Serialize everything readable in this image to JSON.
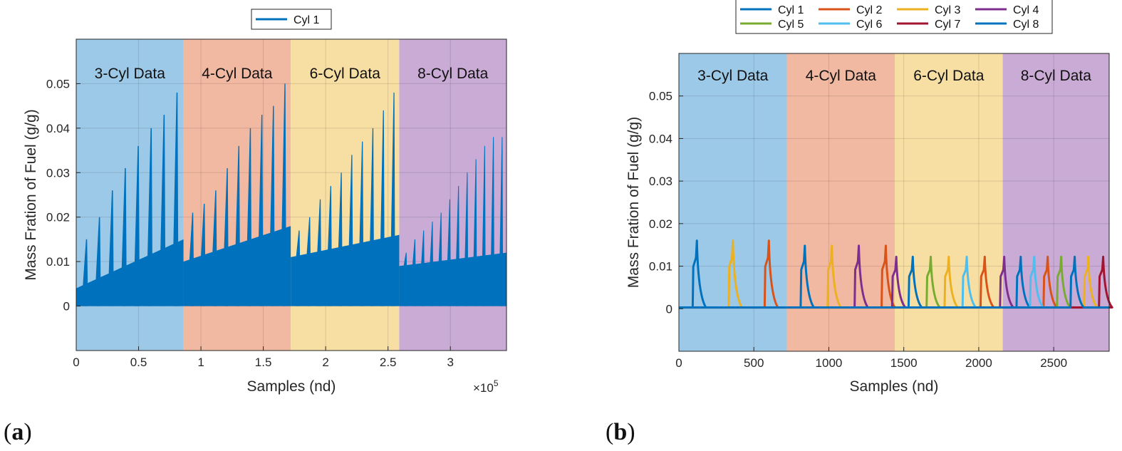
{
  "chart_data": [
    {
      "type": "line",
      "panel_label": "(a)",
      "panel_letter": "a",
      "xlabel": "Samples (nd)",
      "ylabel": "Mass Fration of Fuel (g/g)",
      "x_exponent_label": "×10",
      "x_exponent_power": "5",
      "xlim": [
        0,
        3.45
      ],
      "ylim": [
        -0.01,
        0.06
      ],
      "xticks": [
        0,
        0.5,
        1,
        1.5,
        2,
        2.5,
        3
      ],
      "xtick_labels": [
        "0",
        "0.5",
        "1",
        "1.5",
        "2",
        "2.5",
        "3"
      ],
      "yticks": [
        0,
        0.01,
        0.02,
        0.03,
        0.04,
        0.05
      ],
      "ytick_labels": [
        "0",
        "0.01",
        "0.02",
        "0.03",
        "0.04",
        "0.05"
      ],
      "grid": true,
      "legend_position": "top-center",
      "regions": [
        {
          "label": "3-Cyl Data",
          "x_start": 0,
          "x_end": 0.86,
          "color": "#9dc9e8"
        },
        {
          "label": "4-Cyl Data",
          "x_start": 0.86,
          "x_end": 1.72,
          "color": "#f1b9a2"
        },
        {
          "label": "6-Cyl Data",
          "x_start": 1.72,
          "x_end": 2.59,
          "color": "#f7dfa4"
        },
        {
          "label": "8-Cyl Data",
          "x_start": 2.59,
          "x_end": 3.45,
          "color": "#c9abd5"
        }
      ],
      "series": [
        {
          "name": "Cyl 1",
          "color": "#0072BD",
          "segments": [
            {
              "x_start": 0,
              "x_end": 0.86,
              "base_start": 0.004,
              "base_end": 0.015,
              "spikes": [
                0.015,
                0.02,
                0.026,
                0.031,
                0.036,
                0.04,
                0.043,
                0.048
              ]
            },
            {
              "x_start": 0.86,
              "x_end": 1.72,
              "base_start": 0.01,
              "base_end": 0.018,
              "spikes": [
                0.021,
                0.023,
                0.026,
                0.031,
                0.036,
                0.04,
                0.043,
                0.045,
                0.05
              ]
            },
            {
              "x_start": 1.72,
              "x_end": 2.59,
              "base_start": 0.011,
              "base_end": 0.016,
              "spikes": [
                0.017,
                0.02,
                0.024,
                0.027,
                0.03,
                0.034,
                0.037,
                0.04,
                0.044,
                0.048
              ]
            },
            {
              "x_start": 2.59,
              "x_end": 3.45,
              "base_start": 0.009,
              "base_end": 0.012,
              "spikes": [
                0.012,
                0.015,
                0.017,
                0.019,
                0.021,
                0.024,
                0.027,
                0.03,
                0.033,
                0.036,
                0.038,
                0.038
              ]
            }
          ]
        }
      ]
    },
    {
      "type": "line",
      "panel_label": "(b)",
      "panel_letter": "b",
      "xlabel": "Samples (nd)",
      "ylabel": "Mass Fration of Fuel (g/g)",
      "xlim": [
        0,
        2870
      ],
      "ylim": [
        -0.01,
        0.06
      ],
      "xticks": [
        0,
        500,
        1000,
        1500,
        2000,
        2500
      ],
      "xtick_labels": [
        "0",
        "500",
        "1000",
        "1500",
        "2000",
        "2500"
      ],
      "yticks": [
        0,
        0.01,
        0.02,
        0.03,
        0.04,
        0.05
      ],
      "ytick_labels": [
        "0",
        "0.01",
        "0.02",
        "0.03",
        "0.04",
        "0.05"
      ],
      "grid": true,
      "legend_position": "top-center",
      "regions": [
        {
          "label": "3-Cyl Data",
          "x_start": 0,
          "x_end": 720,
          "color": "#9dc9e8"
        },
        {
          "label": "4-Cyl Data",
          "x_start": 720,
          "x_end": 1440,
          "color": "#f1b9a2"
        },
        {
          "label": "6-Cyl Data",
          "x_start": 1440,
          "x_end": 2160,
          "color": "#f7dfa4"
        },
        {
          "label": "8-Cyl Data",
          "x_start": 2160,
          "x_end": 2870,
          "color": "#c9abd5"
        }
      ],
      "series": [
        {
          "name": "Cyl 1",
          "color": "#0072BD",
          "peaks": [
            {
              "x": 120,
              "y": 0.016
            },
            {
              "x": 840,
              "y": 0.0148
            },
            {
              "x": 1560,
              "y": 0.0122
            },
            {
              "x": 2280,
              "y": 0.0122
            }
          ]
        },
        {
          "name": "Cyl 2",
          "color": "#D95319",
          "peaks": [
            {
              "x": 600,
              "y": 0.016
            },
            {
              "x": 1380,
              "y": 0.0148
            },
            {
              "x": 2040,
              "y": 0.0122
            },
            {
              "x": 2460,
              "y": 0.0122
            }
          ]
        },
        {
          "name": "Cyl 3",
          "color": "#EDB120",
          "peaks": [
            {
              "x": 360,
              "y": 0.016
            },
            {
              "x": 1020,
              "y": 0.0148
            },
            {
              "x": 1800,
              "y": 0.0122
            },
            {
              "x": 2730,
              "y": 0.0122
            }
          ]
        },
        {
          "name": "Cyl 4",
          "color": "#7E2F8E",
          "peaks": [
            {
              "x": 1200,
              "y": 0.0148
            },
            {
              "x": 1450,
              "y": 0.0122
            },
            {
              "x": 2170,
              "y": 0.0122
            }
          ]
        },
        {
          "name": "Cyl 5",
          "color": "#77AC30",
          "peaks": [
            {
              "x": 1680,
              "y": 0.0122
            },
            {
              "x": 2550,
              "y": 0.0122
            }
          ]
        },
        {
          "name": "Cyl 6",
          "color": "#4DBEEE",
          "peaks": [
            {
              "x": 1920,
              "y": 0.0122
            },
            {
              "x": 2370,
              "y": 0.0122
            }
          ]
        },
        {
          "name": "Cyl 7",
          "color": "#A2142F",
          "peaks": [
            {
              "x": 2830,
              "y": 0.0122
            }
          ]
        },
        {
          "name": "Cyl 8",
          "color": "#0072BD",
          "peaks": [
            {
              "x": 2640,
              "y": 0.0122
            }
          ]
        }
      ]
    }
  ]
}
